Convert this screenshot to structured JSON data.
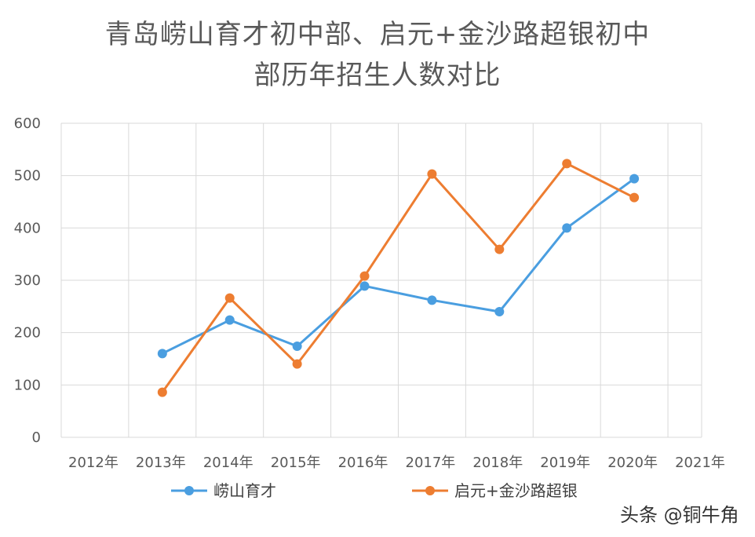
{
  "chart_data": {
    "type": "line",
    "title_line1": "青岛崂山育才初中部、启元+金沙路超银初中",
    "title_line2": "部历年招生人数对比",
    "categories": [
      "2012年",
      "2013年",
      "2014年",
      "2015年",
      "2016年",
      "2017年",
      "2018年",
      "2019年",
      "2020年",
      "2021年"
    ],
    "yticks": [
      "0",
      "100",
      "200",
      "300",
      "400",
      "500",
      "600"
    ],
    "ylim": [
      0,
      600
    ],
    "grid": true,
    "legend_position": "bottom",
    "series": [
      {
        "name": "崂山育才",
        "color": "#4a9ee0",
        "values": [
          null,
          160,
          224,
          174,
          289,
          262,
          240,
          400,
          494,
          null
        ]
      },
      {
        "name": "启元+金沙路超银",
        "color": "#ed7d31",
        "values": [
          null,
          86,
          266,
          140,
          308,
          503,
          359,
          523,
          458,
          null
        ]
      }
    ]
  },
  "watermark": "头条 @铜牛角"
}
